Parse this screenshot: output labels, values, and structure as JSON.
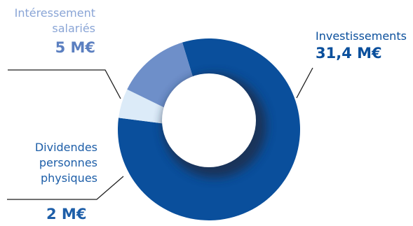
{
  "chart_data": {
    "type": "pie",
    "donut": true,
    "slices": [
      {
        "category_lines": [
          "Investissements"
        ],
        "value": 31.4,
        "value_label": "31,4 M€",
        "color": "#0a4f9c",
        "label_color": "#0a4f9c"
      },
      {
        "category_lines": [
          "Dividendes",
          "personnes",
          "physiques"
        ],
        "value": 2,
        "value_label": "2 M€",
        "color": "#dcebf8",
        "label_color": "#1d5ea8"
      },
      {
        "category_lines": [
          "Intéressement",
          "salariés"
        ],
        "value": 5,
        "value_label": "5 M€",
        "color": "#6e8fc9",
        "label_color": "#8aa5d6"
      }
    ],
    "legend": "none"
  },
  "colors": {
    "leader_line": "#1f1f1f",
    "hole": "#ffffff",
    "shadow": "#1c2f4d"
  }
}
